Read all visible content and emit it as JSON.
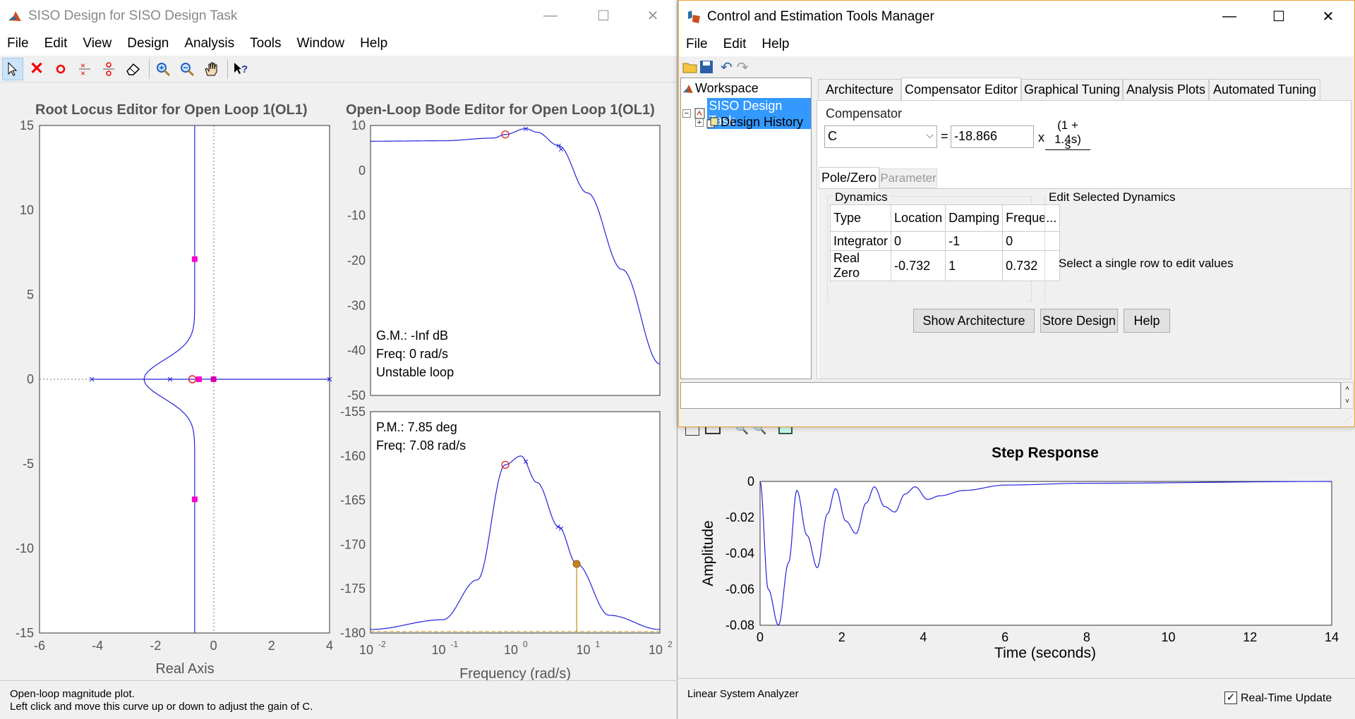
{
  "siso": {
    "title": "SISO Design for SISO Design Task",
    "menu": [
      "File",
      "Edit",
      "View",
      "Design",
      "Analysis",
      "Tools",
      "Window",
      "Help"
    ],
    "rl_title": "Root Locus Editor for Open Loop 1(OL1)",
    "bode_title": "Open-Loop Bode Editor for Open Loop 1(OL1)",
    "rl_xlabel": "Real Axis",
    "rl_yticks": [
      "15",
      "10",
      "5",
      "0",
      "-5",
      "-10",
      "-15"
    ],
    "rl_xticks": [
      "-6",
      "-4",
      "-2",
      "0",
      "2",
      "4"
    ],
    "bode_mag_yticks": [
      "10",
      "0",
      "-10",
      "-20",
      "-30",
      "-40",
      "-50"
    ],
    "bode_phase_yticks": [
      "-155",
      "-160",
      "-165",
      "-170",
      "-175",
      "-180"
    ],
    "bode_xlabel": "Frequency (rad/s)",
    "bode_xticks_base": [
      "10",
      "10",
      "10",
      "10",
      "10"
    ],
    "bode_xticks_exp": [
      "-2",
      "-1",
      "0",
      "1",
      "2"
    ],
    "gm_line1": "G.M.: -Inf dB",
    "gm_line2": "Freq: 0 rad/s",
    "gm_line3": "Unstable loop",
    "pm_line1": "P.M.: 7.85 deg",
    "pm_line2": "Freq: 7.08 rad/s",
    "status1": "Open-loop magnitude plot.",
    "status2": "Left click and move this curve up or down to adjust the gain of C."
  },
  "ctm": {
    "title": "Control and Estimation Tools Manager",
    "menu": [
      "File",
      "Edit",
      "Help"
    ],
    "tree_workspace": "Workspace",
    "tree_task": "SISO Design Task",
    "tree_history": "Design History",
    "tabs": [
      "Architecture",
      "Compensator Editor",
      "Graphical Tuning",
      "Analysis Plots",
      "Automated Tuning"
    ],
    "compensator_label": "Compensator",
    "comp_select": "C",
    "eq": "=",
    "gain": "-18.866",
    "times": "x",
    "numerator": "(1 + 1.4s)",
    "denominator": "s",
    "subtab_pz": "Pole/Zero",
    "subtab_param": "Parameter",
    "dynamics_label": "Dynamics",
    "edit_label": "Edit Selected Dynamics",
    "edit_msg": "Select a single row to edit values",
    "table_headers": [
      "Type",
      "Location",
      "Damping",
      "Freque..."
    ],
    "table_rows": [
      [
        "Integrator",
        "0",
        "-1",
        "0"
      ],
      [
        "Real Zero",
        "-0.732",
        "1",
        "0.732"
      ]
    ],
    "btn_show": "Show Architecture",
    "btn_store": "Store Design",
    "btn_help": "Help"
  },
  "lsa": {
    "title": "Step Response",
    "xlabel": "Time (seconds)",
    "ylabel": "Amplitude",
    "yticks": [
      "0",
      "-0.02",
      "-0.04",
      "-0.06",
      "-0.08"
    ],
    "xticks": [
      "0",
      "2",
      "4",
      "6",
      "8",
      "10",
      "12",
      "14"
    ],
    "status": "Linear System Analyzer",
    "rt_label": "Real-Time Update"
  },
  "chart_data": [
    {
      "type": "scatter",
      "title": "Root Locus Editor for Open Loop 1(OL1)",
      "xlabel": "Real Axis",
      "ylabel": "",
      "xlim": [
        -6,
        4
      ],
      "ylim": [
        -15,
        15
      ],
      "poles": [
        [
          -4.2,
          0
        ],
        [
          -1.5,
          0
        ],
        [
          0,
          0
        ],
        [
          4,
          0
        ]
      ],
      "zeros": [
        [
          -0.73,
          0
        ]
      ],
      "closed_loop_poles": [
        [
          -0.65,
          7.1
        ],
        [
          -0.65,
          -7.1
        ],
        [
          -0.5,
          0
        ],
        [
          0,
          0
        ]
      ]
    },
    {
      "type": "line",
      "title": "Open-Loop Bode Editor for Open Loop 1(OL1)",
      "xlabel": "",
      "ylabel": "",
      "xlim": [
        0.01,
        100
      ],
      "ylim": [
        -50,
        10
      ],
      "x_scale": "log",
      "series": [
        {
          "x": [
            0.01,
            0.1,
            0.5,
            0.73,
            1.4,
            2,
            4,
            10,
            30,
            100
          ],
          "values": [
            6.5,
            6.6,
            7.2,
            8,
            9.3,
            8.5,
            5.5,
            -5,
            -22,
            -43
          ]
        }
      ]
    },
    {
      "type": "line",
      "title": "",
      "xlabel": "Frequency (rad/s)",
      "ylabel": "",
      "xlim": [
        0.01,
        100
      ],
      "ylim": [
        -180,
        -155
      ],
      "x_scale": "log",
      "series": [
        {
          "x": [
            0.01,
            0.1,
            0.3,
            0.73,
            1.2,
            2,
            4,
            7.08,
            20,
            100
          ],
          "values": [
            -179.6,
            -178.5,
            -174,
            -161,
            -160,
            -163,
            -168,
            -172.2,
            -178,
            -179.6
          ]
        }
      ]
    },
    {
      "type": "line",
      "title": "Step Response",
      "xlabel": "Time (seconds)",
      "ylabel": "Amplitude",
      "xlim": [
        0,
        14
      ],
      "ylim": [
        -0.08,
        0
      ],
      "series": [
        {
          "x": [
            0,
            0.2,
            0.45,
            0.7,
            0.9,
            1.15,
            1.4,
            1.65,
            1.85,
            2.1,
            2.35,
            2.6,
            2.8,
            3.05,
            3.3,
            3.55,
            3.8,
            4.1,
            4.4,
            5,
            6,
            8,
            14
          ],
          "values": [
            0,
            -0.06,
            -0.08,
            -0.045,
            -0.005,
            -0.03,
            -0.048,
            -0.018,
            -0.004,
            -0.022,
            -0.029,
            -0.012,
            -0.003,
            -0.014,
            -0.017,
            -0.007,
            -0.003,
            -0.01,
            -0.008,
            -0.005,
            -0.002,
            -0.001,
            0
          ]
        }
      ]
    }
  ]
}
